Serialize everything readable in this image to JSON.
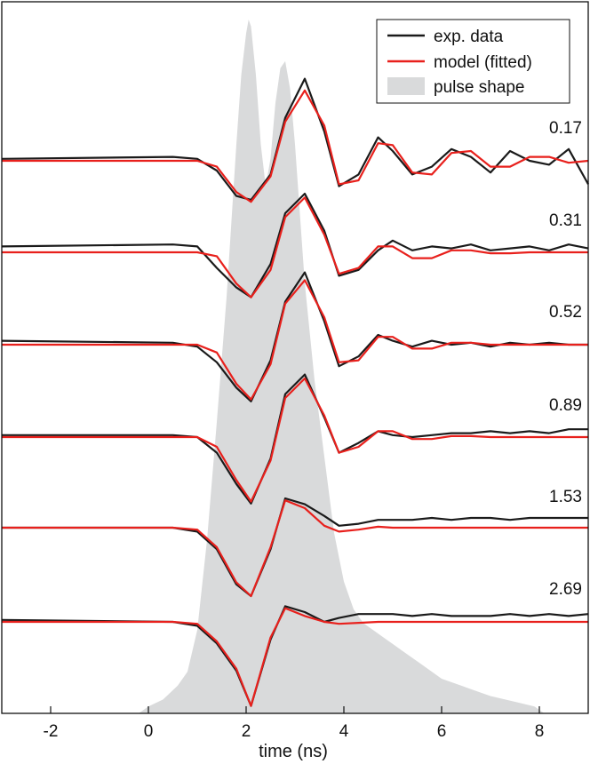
{
  "chart_data": {
    "type": "line",
    "xlabel": "time (ns)",
    "xlim": [
      -3,
      9
    ],
    "xticks": [
      -2,
      0,
      2,
      4,
      6,
      8
    ],
    "grid": false,
    "legend_position": "top-right",
    "legend": [
      {
        "label": "exp. data",
        "kind": "line",
        "color": "#1a1a1a"
      },
      {
        "label": "model (fitted)",
        "kind": "line",
        "color": "#e8201c"
      },
      {
        "label": "pulse shape",
        "kind": "area",
        "color": "#d9dadb"
      }
    ],
    "colors": {
      "data": "#1a1a1a",
      "model": "#e8201c",
      "pulse": "#d9dadb"
    },
    "pulse_shape": {
      "x": [
        -0.2,
        0.0,
        0.3,
        0.6,
        0.8,
        1.0,
        1.2,
        1.4,
        1.6,
        1.8,
        1.9,
        2.0,
        2.05,
        2.1,
        2.2,
        2.3,
        2.4,
        2.5,
        2.6,
        2.7,
        2.8,
        2.9,
        3.0,
        3.1,
        3.2,
        3.4,
        3.6,
        3.8,
        4.0,
        4.2,
        4.4,
        4.6,
        4.8,
        5.0,
        5.2,
        5.4,
        5.6,
        5.8,
        6.0,
        6.2,
        6.4,
        6.6,
        6.8,
        7.0,
        7.3,
        7.6,
        7.9,
        8.1
      ],
      "y": [
        0.0,
        0.01,
        0.02,
        0.04,
        0.06,
        0.12,
        0.25,
        0.42,
        0.6,
        0.82,
        0.92,
        0.98,
        1.0,
        0.99,
        0.92,
        0.82,
        0.76,
        0.8,
        0.88,
        0.93,
        0.94,
        0.9,
        0.82,
        0.72,
        0.62,
        0.48,
        0.37,
        0.26,
        0.19,
        0.15,
        0.13,
        0.12,
        0.11,
        0.1,
        0.09,
        0.08,
        0.07,
        0.06,
        0.05,
        0.045,
        0.04,
        0.035,
        0.03,
        0.025,
        0.02,
        0.015,
        0.01,
        0.0
      ]
    },
    "series": [
      {
        "label": "0.17",
        "x": [
          -3.0,
          0.5,
          1.0,
          1.4,
          1.8,
          2.1,
          2.5,
          2.8,
          3.2,
          3.6,
          3.9,
          4.3,
          4.7,
          5.0,
          5.4,
          5.8,
          6.2,
          6.6,
          7.0,
          7.4,
          7.8,
          8.2,
          8.6,
          9.0
        ],
        "model": [
          0.0,
          0.0,
          0.0,
          -0.3,
          -1.6,
          -2.1,
          -0.8,
          2.0,
          3.6,
          1.8,
          -1.2,
          -1.0,
          0.9,
          0.8,
          -0.6,
          -0.7,
          0.4,
          0.5,
          -0.3,
          -0.3,
          0.2,
          0.2,
          -0.1,
          0.0
        ],
        "data": [
          0.1,
          0.2,
          0.1,
          -0.5,
          -1.8,
          -2.0,
          -0.7,
          2.2,
          4.2,
          1.5,
          -1.3,
          -0.7,
          1.2,
          0.5,
          -0.7,
          -0.3,
          0.6,
          0.2,
          -0.6,
          0.5,
          0.0,
          -0.2,
          0.6,
          -1.2
        ]
      },
      {
        "label": "0.31",
        "x": [
          -3.0,
          0.5,
          1.0,
          1.4,
          1.8,
          2.1,
          2.5,
          2.8,
          3.2,
          3.6,
          3.9,
          4.3,
          4.7,
          5.0,
          5.4,
          5.8,
          6.2,
          6.6,
          7.0,
          7.4,
          7.8,
          8.2,
          8.6,
          9.0
        ],
        "model": [
          0.0,
          0.0,
          0.0,
          -0.2,
          -1.6,
          -2.3,
          -0.9,
          1.8,
          2.8,
          0.9,
          -1.1,
          -0.8,
          0.3,
          0.3,
          -0.3,
          -0.3,
          0.1,
          0.1,
          -0.05,
          -0.05,
          0.0,
          0.0,
          0.0,
          0.0
        ],
        "data": [
          0.3,
          0.4,
          0.3,
          -0.8,
          -1.8,
          -2.3,
          -0.6,
          2.0,
          3.0,
          1.1,
          -1.2,
          -0.9,
          0.1,
          0.6,
          0.1,
          0.3,
          0.2,
          0.4,
          0.1,
          0.2,
          0.3,
          0.1,
          0.4,
          0.2
        ]
      },
      {
        "label": "0.52",
        "x": [
          -3.0,
          0.5,
          1.0,
          1.4,
          1.8,
          2.1,
          2.5,
          2.8,
          3.2,
          3.6,
          3.9,
          4.3,
          4.7,
          5.0,
          5.4,
          5.8,
          6.2,
          6.6,
          7.0,
          7.4,
          7.8,
          8.2,
          8.6,
          9.0
        ],
        "model": [
          0.0,
          0.0,
          0.0,
          -0.4,
          -2.0,
          -2.8,
          -1.0,
          2.1,
          3.3,
          1.4,
          -0.9,
          -0.8,
          0.4,
          0.4,
          -0.2,
          -0.2,
          0.1,
          0.1,
          0.0,
          0.0,
          0.0,
          0.0,
          0.0,
          0.0
        ],
        "data": [
          0.2,
          0.1,
          -0.1,
          -0.9,
          -2.2,
          -2.9,
          -0.8,
          2.2,
          3.7,
          1.2,
          -1.1,
          -0.6,
          0.5,
          0.2,
          -0.1,
          0.2,
          0.0,
          0.1,
          -0.1,
          0.1,
          0.0,
          0.1,
          0.0,
          0.0
        ]
      },
      {
        "label": "0.89",
        "x": [
          -3.0,
          0.5,
          1.0,
          1.4,
          1.8,
          2.1,
          2.5,
          2.8,
          3.2,
          3.6,
          3.9,
          4.3,
          4.7,
          5.0,
          5.4,
          5.8,
          6.2,
          6.6,
          7.0,
          7.4,
          7.8,
          8.2,
          8.6,
          9.0
        ],
        "model": [
          0.0,
          0.0,
          0.0,
          -0.5,
          -2.2,
          -3.3,
          -1.2,
          2.0,
          3.0,
          1.1,
          -0.8,
          -0.5,
          0.3,
          0.3,
          -0.1,
          -0.1,
          0.05,
          0.05,
          0.0,
          0.0,
          0.0,
          0.0,
          0.0,
          0.0
        ],
        "data": [
          0.1,
          0.1,
          0.0,
          -0.8,
          -2.4,
          -3.4,
          -1.1,
          2.2,
          3.2,
          1.0,
          -0.8,
          -0.3,
          0.3,
          0.1,
          0.0,
          0.1,
          0.2,
          0.2,
          0.3,
          0.2,
          0.3,
          0.2,
          0.4,
          0.4
        ]
      },
      {
        "label": "1.53",
        "x": [
          -3.0,
          0.5,
          1.0,
          1.4,
          1.8,
          2.1,
          2.5,
          2.8,
          3.2,
          3.6,
          3.9,
          4.3,
          4.7,
          5.0,
          5.4,
          5.8,
          6.2,
          6.6,
          7.0,
          7.4,
          7.8,
          8.2,
          8.6,
          9.0
        ],
        "model": [
          0.0,
          0.0,
          -0.1,
          -1.0,
          -2.8,
          -3.5,
          -1.0,
          1.4,
          1.0,
          0.1,
          -0.2,
          -0.1,
          0.05,
          0.0,
          0.0,
          0.0,
          0.0,
          0.0,
          0.0,
          0.0,
          0.0,
          0.0,
          0.0,
          0.0
        ],
        "data": [
          0.0,
          0.0,
          -0.2,
          -1.1,
          -2.9,
          -3.5,
          -1.1,
          1.5,
          1.2,
          0.6,
          0.1,
          0.2,
          0.4,
          0.4,
          0.4,
          0.5,
          0.4,
          0.5,
          0.5,
          0.4,
          0.5,
          0.5,
          0.5,
          0.5
        ]
      },
      {
        "label": "2.69",
        "x": [
          -3.0,
          0.5,
          1.0,
          1.4,
          1.8,
          2.1,
          2.5,
          2.8,
          3.2,
          3.6,
          3.9,
          4.3,
          4.7,
          5.0,
          5.4,
          5.8,
          6.2,
          6.6,
          7.0,
          7.4,
          7.8,
          8.2,
          8.6,
          9.0
        ],
        "model": [
          0.0,
          0.0,
          -0.1,
          -1.0,
          -2.4,
          -4.3,
          -0.8,
          0.7,
          0.3,
          0.0,
          -0.1,
          -0.05,
          0.0,
          0.0,
          0.0,
          0.0,
          0.0,
          0.0,
          0.0,
          0.0,
          0.0,
          0.0,
          0.0,
          0.0
        ],
        "data": [
          0.1,
          0.0,
          -0.2,
          -1.1,
          -2.5,
          -4.3,
          -0.9,
          0.8,
          0.5,
          0.0,
          0.2,
          0.4,
          0.4,
          0.4,
          0.3,
          0.4,
          0.3,
          0.3,
          0.3,
          0.4,
          0.3,
          0.4,
          0.3,
          0.4
        ]
      }
    ]
  }
}
